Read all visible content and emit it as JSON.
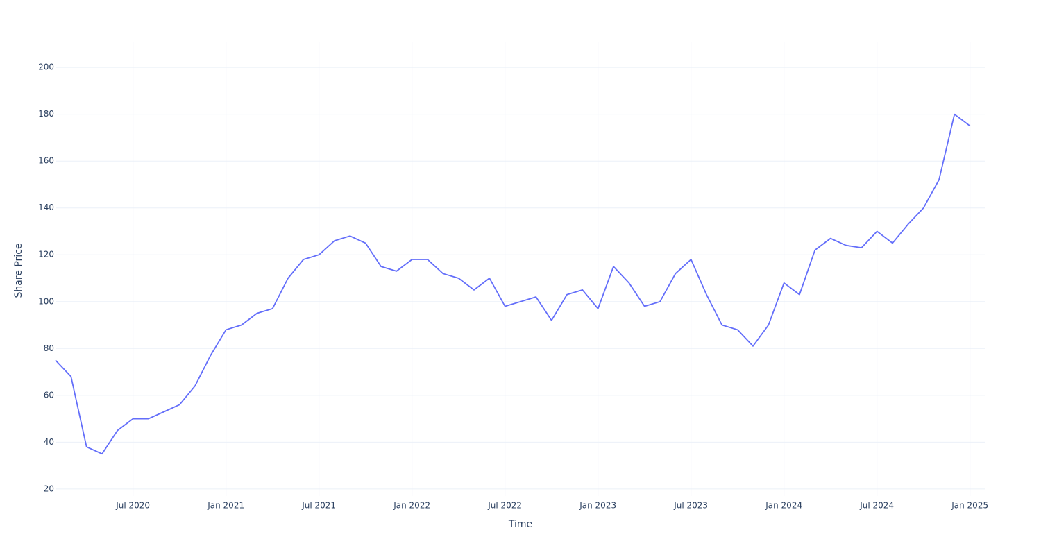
{
  "chart_data": {
    "type": "line",
    "x_title": "Time",
    "y_title": "Share Price",
    "x": [
      "2020-02",
      "2020-03",
      "2020-04",
      "2020-05",
      "2020-06",
      "2020-07",
      "2020-08",
      "2020-09",
      "2020-10",
      "2020-11",
      "2020-12",
      "2021-01",
      "2021-02",
      "2021-03",
      "2021-04",
      "2021-05",
      "2021-06",
      "2021-07",
      "2021-08",
      "2021-09",
      "2021-10",
      "2021-11",
      "2021-12",
      "2022-01",
      "2022-02",
      "2022-03",
      "2022-04",
      "2022-05",
      "2022-06",
      "2022-07",
      "2022-08",
      "2022-09",
      "2022-10",
      "2022-11",
      "2022-12",
      "2023-01",
      "2023-02",
      "2023-03",
      "2023-04",
      "2023-05",
      "2023-06",
      "2023-07",
      "2023-08",
      "2023-09",
      "2023-10",
      "2023-11",
      "2023-12",
      "2024-01",
      "2024-02",
      "2024-03",
      "2024-04",
      "2024-05",
      "2024-06",
      "2024-07",
      "2024-08",
      "2024-09",
      "2024-10",
      "2024-11",
      "2024-12",
      "2025-01"
    ],
    "values": [
      75,
      68,
      38,
      35,
      45,
      50,
      50,
      53,
      56,
      64,
      77,
      88,
      90,
      95,
      97,
      110,
      118,
      120,
      126,
      128,
      125,
      115,
      113,
      118,
      118,
      112,
      110,
      105,
      110,
      98,
      100,
      102,
      92,
      103,
      105,
      97,
      115,
      108,
      98,
      100,
      112,
      118,
      103,
      90,
      88,
      81,
      90,
      108,
      103,
      122,
      127,
      124,
      123,
      130,
      125,
      133,
      140,
      152,
      180,
      175
    ],
    "color": "#636efa",
    "xlim": [
      "2020-02",
      "2025-02"
    ],
    "xticks": [
      {
        "value": "2020-07",
        "label": "Jul 2020"
      },
      {
        "value": "2021-01",
        "label": "Jan 2021"
      },
      {
        "value": "2021-07",
        "label": "Jul 2021"
      },
      {
        "value": "2022-01",
        "label": "Jan 2022"
      },
      {
        "value": "2022-07",
        "label": "Jul 2022"
      },
      {
        "value": "2023-01",
        "label": "Jan 2023"
      },
      {
        "value": "2023-07",
        "label": "Jul 2023"
      },
      {
        "value": "2024-01",
        "label": "Jan 2024"
      },
      {
        "value": "2024-07",
        "label": "Jul 2024"
      },
      {
        "value": "2025-01",
        "label": "Jan 2025"
      }
    ],
    "ylim": [
      17,
      211
    ],
    "yticks": [
      20,
      40,
      60,
      80,
      100,
      120,
      140,
      160,
      180,
      200
    ],
    "grid": true
  }
}
